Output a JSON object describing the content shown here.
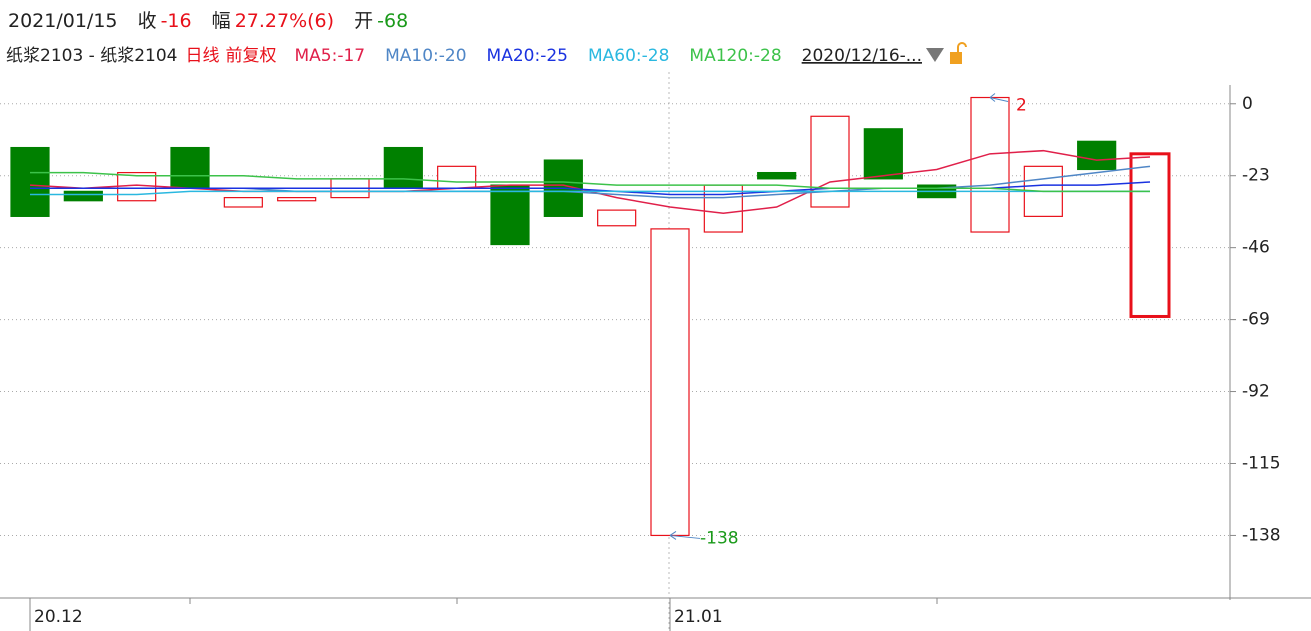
{
  "header": {
    "date": "2021/01/15",
    "close_label": "收",
    "close": -16,
    "change_label": "幅",
    "change": "27.27%(6)",
    "open_label": "开",
    "open": -68
  },
  "chart_data": {
    "type": "candlestick",
    "title": "纸浆2103 - 纸浆2104",
    "period": "日线",
    "adjust": "前复权",
    "range": "2020/12/16-...",
    "categories": [
      "20.12",
      null,
      null,
      null,
      null,
      null,
      null,
      null,
      null,
      null,
      null,
      null,
      "21.01",
      null,
      null,
      null,
      null,
      null,
      null,
      null,
      null,
      null
    ],
    "open": [
      -14,
      -28,
      -31,
      -14,
      -33,
      -31,
      -30,
      -14,
      -27,
      -26,
      -18,
      -39,
      -138,
      -41,
      -22,
      -33,
      -8,
      -26,
      -41,
      -36,
      -12,
      -68
    ],
    "close": [
      -36,
      -31,
      -22,
      -27,
      -30,
      -30,
      -24,
      -27,
      -20,
      -45,
      -36,
      -34,
      -40,
      -26,
      -24,
      -4,
      -24,
      -30,
      2,
      -20,
      -21,
      -16
    ],
    "up_color": "#e8101a",
    "down_color": "#008000",
    "series": [
      {
        "name": "MA5:-17",
        "color": "#e0204a",
        "values": [
          -26,
          -27,
          -26,
          -27,
          -28,
          -28,
          -28,
          -28,
          -27,
          -26,
          -26,
          -30,
          -33,
          -35,
          -33,
          -25,
          -23,
          -21,
          -16,
          -15,
          -18,
          -17
        ]
      },
      {
        "name": "MA10:-20",
        "color": "#4f86c6",
        "values": [
          -27,
          -27,
          -27,
          -27,
          -27,
          -28,
          -28,
          -28,
          -28,
          -28,
          -28,
          -29,
          -30,
          -30,
          -29,
          -28,
          -27,
          -27,
          -26,
          -24,
          -22,
          -20
        ]
      },
      {
        "name": "MA20:-25",
        "color": "#1a32e0",
        "values": [
          -27,
          -27,
          -27,
          -27,
          -27,
          -27,
          -27,
          -27,
          -27,
          -27,
          -27,
          -28,
          -29,
          -29,
          -28,
          -27,
          -27,
          -27,
          -27,
          -26,
          -26,
          -25
        ]
      },
      {
        "name": "MA60:-28",
        "color": "#2ab8e0",
        "values": [
          -29,
          -29,
          -29,
          -28,
          -28,
          -28,
          -28,
          -28,
          -28,
          -28,
          -28,
          -28,
          -28,
          -28,
          -28,
          -28,
          -28,
          -28,
          -28,
          -28,
          -28,
          -28
        ]
      },
      {
        "name": "MA120:-28",
        "color": "#3cc24a",
        "values": [
          -22,
          -22,
          -23,
          -23,
          -23,
          -24,
          -24,
          -24,
          -25,
          -25,
          -25,
          -26,
          -26,
          -26,
          -26,
          -27,
          -27,
          -27,
          -27,
          -28,
          -28,
          -28
        ]
      }
    ],
    "annotations": {
      "high": 2,
      "low": -138
    },
    "ylim": [
      -158,
      6
    ],
    "yticks": [
      0,
      -23,
      -46,
      -69,
      -92,
      -115,
      -138
    ],
    "grid": true
  }
}
